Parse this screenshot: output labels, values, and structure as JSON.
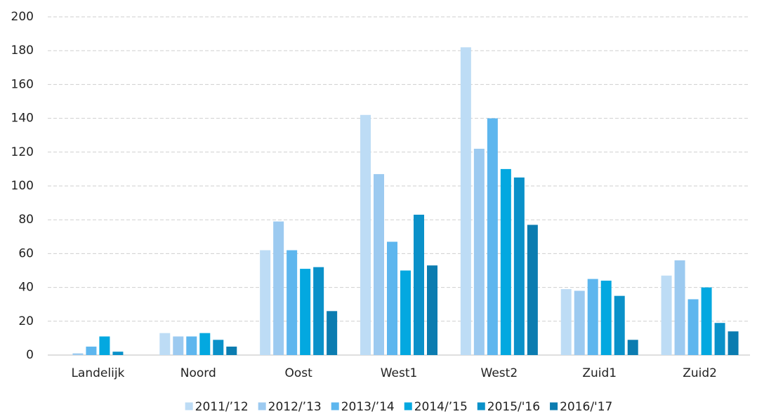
{
  "chart_data": {
    "type": "bar",
    "categories": [
      "Landelijk",
      "Noord",
      "Oost",
      "West1",
      "West2",
      "Zuid1",
      "Zuid2"
    ],
    "series": [
      {
        "name": "2011/’12",
        "color": "#bddcf5",
        "values": [
          0,
          13,
          62,
          142,
          182,
          39,
          47
        ]
      },
      {
        "name": "2012/’13",
        "color": "#9ccaf0",
        "values": [
          1,
          11,
          79,
          107,
          122,
          38,
          56
        ]
      },
      {
        "name": "2013/’14",
        "color": "#5db6ee",
        "values": [
          5,
          11,
          62,
          67,
          140,
          45,
          33
        ]
      },
      {
        "name": "2014/’15",
        "color": "#03a8e0",
        "values": [
          11,
          13,
          51,
          50,
          110,
          44,
          40
        ]
      },
      {
        "name": "2015/'16",
        "color": "#0a91c9",
        "values": [
          2,
          9,
          52,
          83,
          105,
          35,
          19
        ]
      },
      {
        "name": "2016/'17",
        "color": "#0b7cb0",
        "values": [
          0,
          5,
          26,
          53,
          77,
          9,
          14
        ]
      }
    ],
    "ylim": [
      0,
      200
    ],
    "yticks": [
      0,
      20,
      40,
      60,
      80,
      100,
      120,
      140,
      160,
      180,
      200
    ],
    "grid": true,
    "legend": "bottom"
  }
}
